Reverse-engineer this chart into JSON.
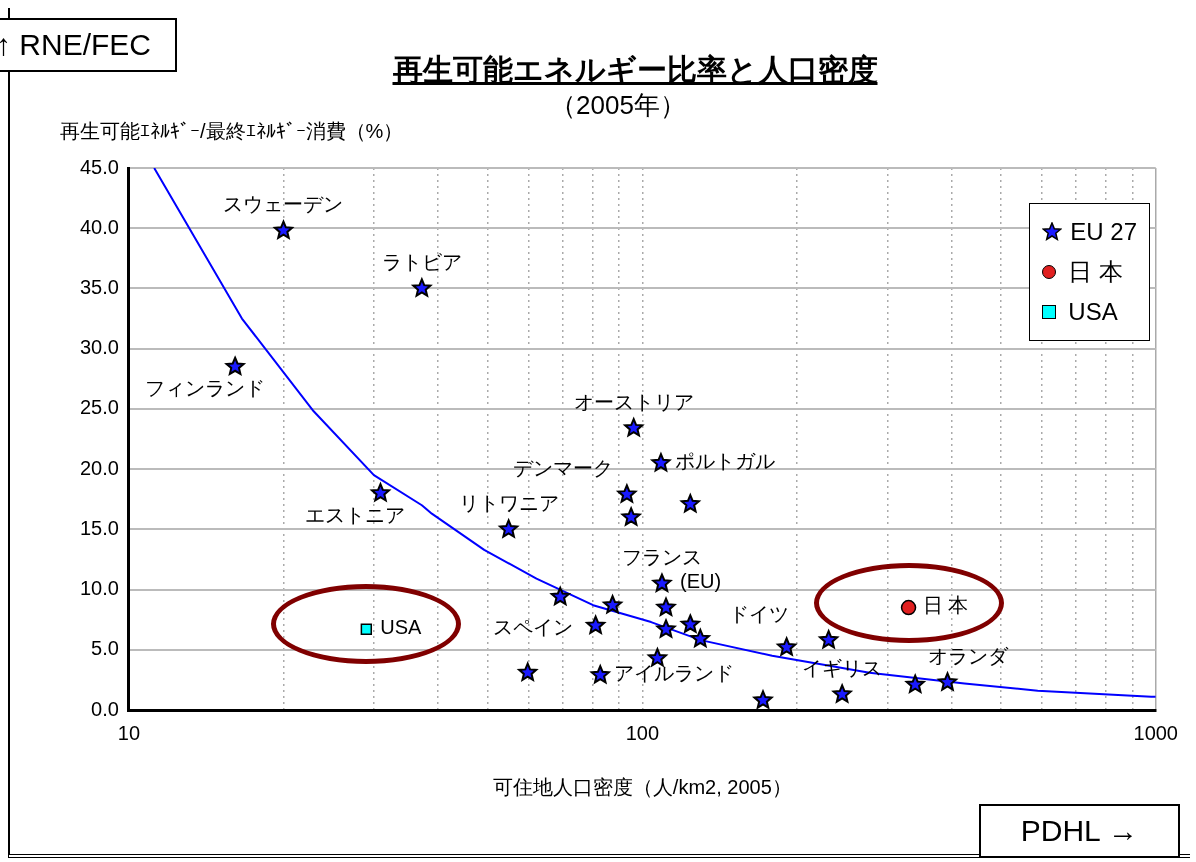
{
  "chart_data": {
    "type": "scatter",
    "title": "再生可能エネルギー比率と人口密度",
    "subtitle": "（2005年）",
    "xlabel": "可住地人口密度（人/km2, 2005）",
    "ylabel": "再生可能ｴﾈﾙｷﾞｰ/最終ｴﾈﾙｷﾞｰ消費（%）",
    "log": "x",
    "grid": true,
    "legend": "top right",
    "xlim": [
      10,
      1000
    ],
    "xticks": [
      10,
      {
        "value": 20,
        "label": null
      },
      {
        "value": 30,
        "label": null
      },
      {
        "value": 40,
        "label": null
      },
      {
        "value": 50,
        "label": null
      },
      {
        "value": 60,
        "label": null
      },
      {
        "value": 70,
        "label": null
      },
      {
        "value": 80,
        "label": null
      },
      {
        "value": 90,
        "label": null
      },
      100,
      {
        "value": 200,
        "label": null
      },
      {
        "value": 300,
        "label": null
      },
      {
        "value": 400,
        "label": null
      },
      {
        "value": 500,
        "label": null
      },
      {
        "value": 600,
        "label": null
      },
      {
        "value": 700,
        "label": null
      },
      {
        "value": 800,
        "label": null
      },
      {
        "value": 900,
        "label": null
      },
      1000
    ],
    "ylim": [
      0,
      45
    ],
    "yticks": [
      {
        "value": 0,
        "label": "0.0"
      },
      {
        "value": 5,
        "label": "5.0"
      },
      {
        "value": 10,
        "label": "10.0"
      },
      {
        "value": 15,
        "label": "15.0"
      },
      {
        "value": 20,
        "label": "20.0"
      },
      {
        "value": 25,
        "label": "25.0"
      },
      {
        "value": 30,
        "label": "30.0"
      },
      {
        "value": 35,
        "label": "35.0"
      },
      {
        "value": 40,
        "label": "40.0"
      },
      {
        "value": 45,
        "label": "45.0"
      }
    ],
    "series": [
      {
        "name": "EU 27",
        "type": "scatter",
        "marker": "star",
        "color": "#1a1aff",
        "x": [
          20,
          37.2,
          16.1,
          30.9,
          54.9,
          96.2,
          108.7,
          93.3,
          95.1,
          124,
          69.2,
          87.5,
          109.2,
          111.2,
          81.1,
          111.2,
          124,
          129.7,
          107,
          59.8,
          82.8,
          171.8,
          191,
          230.6,
          245,
          340,
          393
        ],
        "values": [
          39.8,
          35.0,
          28.5,
          18.0,
          15.0,
          23.4,
          20.5,
          17.9,
          16.0,
          17.1,
          9.4,
          8.7,
          10.5,
          8.5,
          7.0,
          6.7,
          7.1,
          5.9,
          4.3,
          3.1,
          2.9,
          0.8,
          5.2,
          5.8,
          1.3,
          2.1,
          2.3
        ]
      },
      {
        "name": "日 本",
        "type": "scatter",
        "marker": "circle",
        "color": "#e02020",
        "x": [
          330
        ],
        "values": [
          8.5
        ]
      },
      {
        "name": "USA",
        "type": "scatter",
        "marker": "square",
        "color": "#00ffff",
        "x": [
          29
        ],
        "values": [
          6.7
        ]
      },
      {
        "type": "line",
        "marker": "none",
        "color": "#0000ff",
        "x": [
          11.2,
          16.6,
          22.9,
          30,
          37.2,
          38.9,
          49.2,
          62.2,
          80.2,
          104,
          130,
          179,
          277,
          424,
          589,
          980,
          1000
        ],
        "values": [
          45,
          32.5,
          24.8,
          19.5,
          17,
          16.3,
          13.3,
          10.9,
          8.7,
          7.3,
          5.8,
          4.5,
          3.1,
          2.2,
          1.6,
          1.1,
          1.1
        ]
      }
    ],
    "annotations": [
      "↑ RNE/FEC",
      "PDHL →",
      {
        "text": "スウェーデン",
        "x": 20,
        "y": 39.8
      },
      {
        "text": "ラトビア",
        "x": 37.2,
        "y": 35.0
      },
      {
        "text": "フィンランド",
        "x": 16.1,
        "y": 28.5
      },
      {
        "text": "エストニア",
        "x": 30.9,
        "y": 18.0
      },
      {
        "text": "リトワニア",
        "x": 54.9,
        "y": 15.0
      },
      {
        "text": "オーストリア",
        "x": 96.2,
        "y": 23.4
      },
      {
        "text": "ポルトガル",
        "x": 108.7,
        "y": 20.5
      },
      {
        "text": "デンマーク",
        "x": 93.3,
        "y": 17.9
      },
      {
        "text": "フランス",
        "x": 109.2,
        "y": 10.5
      },
      {
        "text": "スペイン",
        "x": 87.5,
        "y": 8.7
      },
      {
        "text": "(EU)",
        "x": 111.2,
        "y": 8.5
      },
      {
        "text": "アイルランド",
        "x": 82.8,
        "y": 2.9
      },
      {
        "text": "ドイツ",
        "x": 230.6,
        "y": 5.8
      },
      {
        "text": "イギリス",
        "x": 245,
        "y": 1.3
      },
      {
        "text": "オランダ",
        "x": 393,
        "y": 2.3
      },
      {
        "text": "日 本",
        "x": 330,
        "y": 8.5
      },
      {
        "text": "USA",
        "x": 29,
        "y": 6.7
      }
    ]
  }
}
